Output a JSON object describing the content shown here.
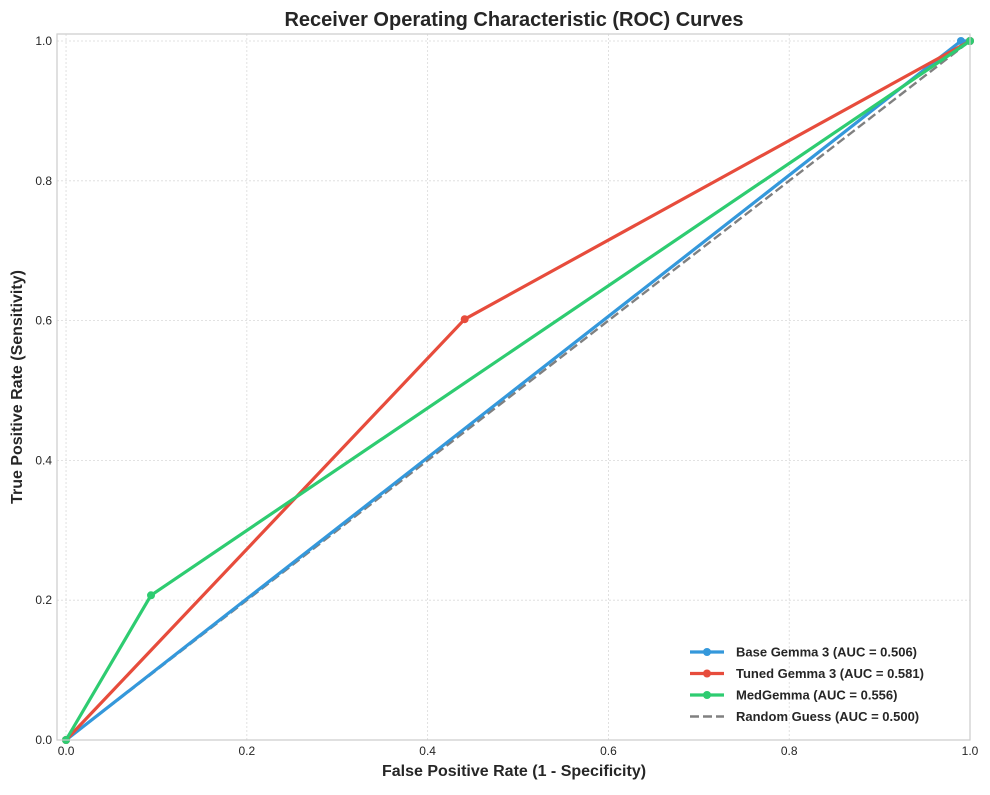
{
  "chart_data": {
    "type": "line",
    "title": "Receiver Operating Characteristic (ROC) Curves",
    "xlabel": "False Positive Rate (1 - Specificity)",
    "ylabel": "True Positive Rate (Sensitivity)",
    "xlim": [
      -0.01,
      1.0
    ],
    "ylim": [
      0.0,
      1.01
    ],
    "xticks": [
      "0.0",
      "0.2",
      "0.4",
      "0.6",
      "0.8",
      "1.0"
    ],
    "yticks": [
      "0.0",
      "0.2",
      "0.4",
      "0.6",
      "0.8",
      "1.0"
    ],
    "grid": true,
    "legend_position": "lower-right",
    "series": [
      {
        "name": "Base Gemma 3 (AUC = 0.506)",
        "color": "#3498db",
        "style": "solid",
        "markers": true,
        "points": [
          [
            0.0,
            0.0
          ],
          [
            0.99,
            1.0
          ],
          [
            1.0,
            1.0
          ]
        ]
      },
      {
        "name": "Tuned Gemma 3 (AUC = 0.581)",
        "color": "#e74c3c",
        "style": "solid",
        "markers": true,
        "points": [
          [
            0.0,
            0.0
          ],
          [
            0.441,
            0.602
          ],
          [
            1.0,
            1.0
          ]
        ]
      },
      {
        "name": "MedGemma (AUC = 0.556)",
        "color": "#2ecc71",
        "style": "solid",
        "markers": true,
        "points": [
          [
            0.0,
            0.0
          ],
          [
            0.094,
            0.207
          ],
          [
            1.0,
            1.0
          ]
        ]
      },
      {
        "name": "Random Guess (AUC = 0.500)",
        "color": "#808080",
        "style": "dashed",
        "markers": false,
        "points": [
          [
            0.0,
            0.0
          ],
          [
            1.0,
            1.0
          ]
        ]
      }
    ]
  }
}
